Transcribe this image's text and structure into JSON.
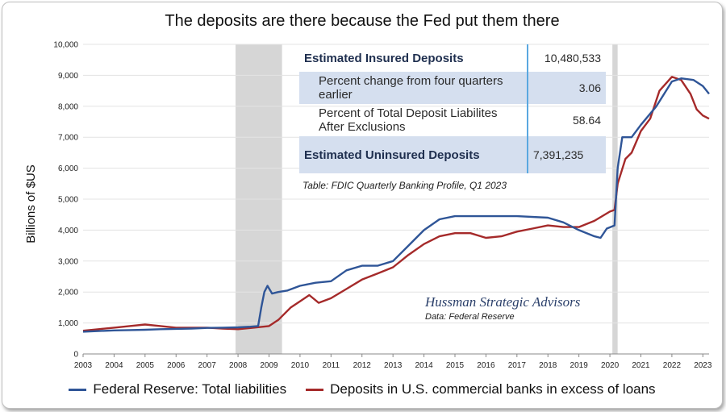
{
  "chart_data": {
    "type": "line",
    "title": "The deposits are there because the Fed put them there",
    "ylabel": "Billions of $US",
    "xlabel": "",
    "xlim": [
      2003,
      2023.2
    ],
    "ylim": [
      0,
      10000
    ],
    "y_ticks": [
      "0",
      "1,000",
      "2,000",
      "3,000",
      "4,000",
      "5,000",
      "6,000",
      "7,000",
      "8,000",
      "9,000",
      "10,000"
    ],
    "x_ticks": [
      "2003",
      "2004",
      "2005",
      "2006",
      "2007",
      "2008",
      "2009",
      "2010",
      "2011",
      "2012",
      "2013",
      "2014",
      "2015",
      "2016",
      "2017",
      "2018",
      "2019",
      "2020",
      "2021",
      "2022",
      "2023"
    ],
    "grid": "horizontal",
    "recessions": [
      [
        2007.92,
        2009.42
      ],
      [
        2020.08,
        2020.25
      ]
    ],
    "legend_position": "bottom",
    "series": [
      {
        "name": "Federal Reserve: Total liabilities",
        "color": "#2f5597",
        "points": [
          [
            2003.0,
            720
          ],
          [
            2003.5,
            740
          ],
          [
            2004.0,
            760
          ],
          [
            2004.5,
            770
          ],
          [
            2005.0,
            780
          ],
          [
            2005.5,
            800
          ],
          [
            2006.0,
            810
          ],
          [
            2006.5,
            820
          ],
          [
            2007.0,
            840
          ],
          [
            2007.5,
            850
          ],
          [
            2008.0,
            860
          ],
          [
            2008.4,
            880
          ],
          [
            2008.65,
            900
          ],
          [
            2008.75,
            1500
          ],
          [
            2008.85,
            2000
          ],
          [
            2008.95,
            2200
          ],
          [
            2009.1,
            1950
          ],
          [
            2009.3,
            2000
          ],
          [
            2009.6,
            2050
          ],
          [
            2010.0,
            2200
          ],
          [
            2010.5,
            2300
          ],
          [
            2011.0,
            2350
          ],
          [
            2011.5,
            2700
          ],
          [
            2012.0,
            2850
          ],
          [
            2012.5,
            2850
          ],
          [
            2013.0,
            3000
          ],
          [
            2013.5,
            3500
          ],
          [
            2014.0,
            4000
          ],
          [
            2014.5,
            4350
          ],
          [
            2015.0,
            4450
          ],
          [
            2016.0,
            4450
          ],
          [
            2017.0,
            4450
          ],
          [
            2018.0,
            4400
          ],
          [
            2018.5,
            4250
          ],
          [
            2019.0,
            4000
          ],
          [
            2019.5,
            3800
          ],
          [
            2019.7,
            3750
          ],
          [
            2019.9,
            4050
          ],
          [
            2020.15,
            4150
          ],
          [
            2020.25,
            6000
          ],
          [
            2020.4,
            7000
          ],
          [
            2020.7,
            7000
          ],
          [
            2021.0,
            7400
          ],
          [
            2021.5,
            8000
          ],
          [
            2022.0,
            8800
          ],
          [
            2022.3,
            8900
          ],
          [
            2022.7,
            8850
          ],
          [
            2023.0,
            8650
          ],
          [
            2023.2,
            8400
          ]
        ]
      },
      {
        "name": "Deposits in U.S. commercial banks in excess of loans",
        "color": "#a52a2a",
        "points": [
          [
            2003.0,
            750
          ],
          [
            2003.5,
            800
          ],
          [
            2004.0,
            850
          ],
          [
            2004.5,
            900
          ],
          [
            2005.0,
            950
          ],
          [
            2005.5,
            900
          ],
          [
            2006.0,
            850
          ],
          [
            2006.5,
            850
          ],
          [
            2007.0,
            850
          ],
          [
            2007.5,
            820
          ],
          [
            2008.0,
            800
          ],
          [
            2008.5,
            850
          ],
          [
            2009.0,
            900
          ],
          [
            2009.3,
            1100
          ],
          [
            2009.7,
            1500
          ],
          [
            2010.0,
            1700
          ],
          [
            2010.3,
            1900
          ],
          [
            2010.6,
            1650
          ],
          [
            2011.0,
            1800
          ],
          [
            2011.5,
            2100
          ],
          [
            2012.0,
            2400
          ],
          [
            2012.5,
            2600
          ],
          [
            2013.0,
            2800
          ],
          [
            2013.5,
            3200
          ],
          [
            2014.0,
            3550
          ],
          [
            2014.5,
            3800
          ],
          [
            2015.0,
            3900
          ],
          [
            2015.5,
            3900
          ],
          [
            2016.0,
            3750
          ],
          [
            2016.5,
            3800
          ],
          [
            2017.0,
            3950
          ],
          [
            2017.5,
            4050
          ],
          [
            2018.0,
            4150
          ],
          [
            2018.5,
            4100
          ],
          [
            2019.0,
            4100
          ],
          [
            2019.5,
            4300
          ],
          [
            2020.0,
            4600
          ],
          [
            2020.15,
            4650
          ],
          [
            2020.25,
            5500
          ],
          [
            2020.5,
            6300
          ],
          [
            2020.7,
            6500
          ],
          [
            2021.0,
            7200
          ],
          [
            2021.3,
            7600
          ],
          [
            2021.6,
            8500
          ],
          [
            2022.0,
            8950
          ],
          [
            2022.3,
            8850
          ],
          [
            2022.6,
            8400
          ],
          [
            2022.8,
            7900
          ],
          [
            2023.0,
            7700
          ],
          [
            2023.2,
            7600
          ]
        ]
      }
    ]
  },
  "table": {
    "rows": [
      {
        "label": "Estimated Insured Deposits",
        "value": "10,480,533"
      },
      {
        "label": "Percent change from four quarters earlier",
        "value": "3.06"
      },
      {
        "label": "Percent of Total Deposit Liabilites After Exclusions",
        "value": "58.64"
      },
      {
        "label": "Estimated Uninsured Deposits",
        "value": "7,391,235"
      }
    ],
    "caption": "Table: FDIC Quarterly Banking Profile, Q1 2023"
  },
  "annotation": {
    "brand": "Hussman Strategic Advisors",
    "source": "Data: Federal Reserve"
  }
}
